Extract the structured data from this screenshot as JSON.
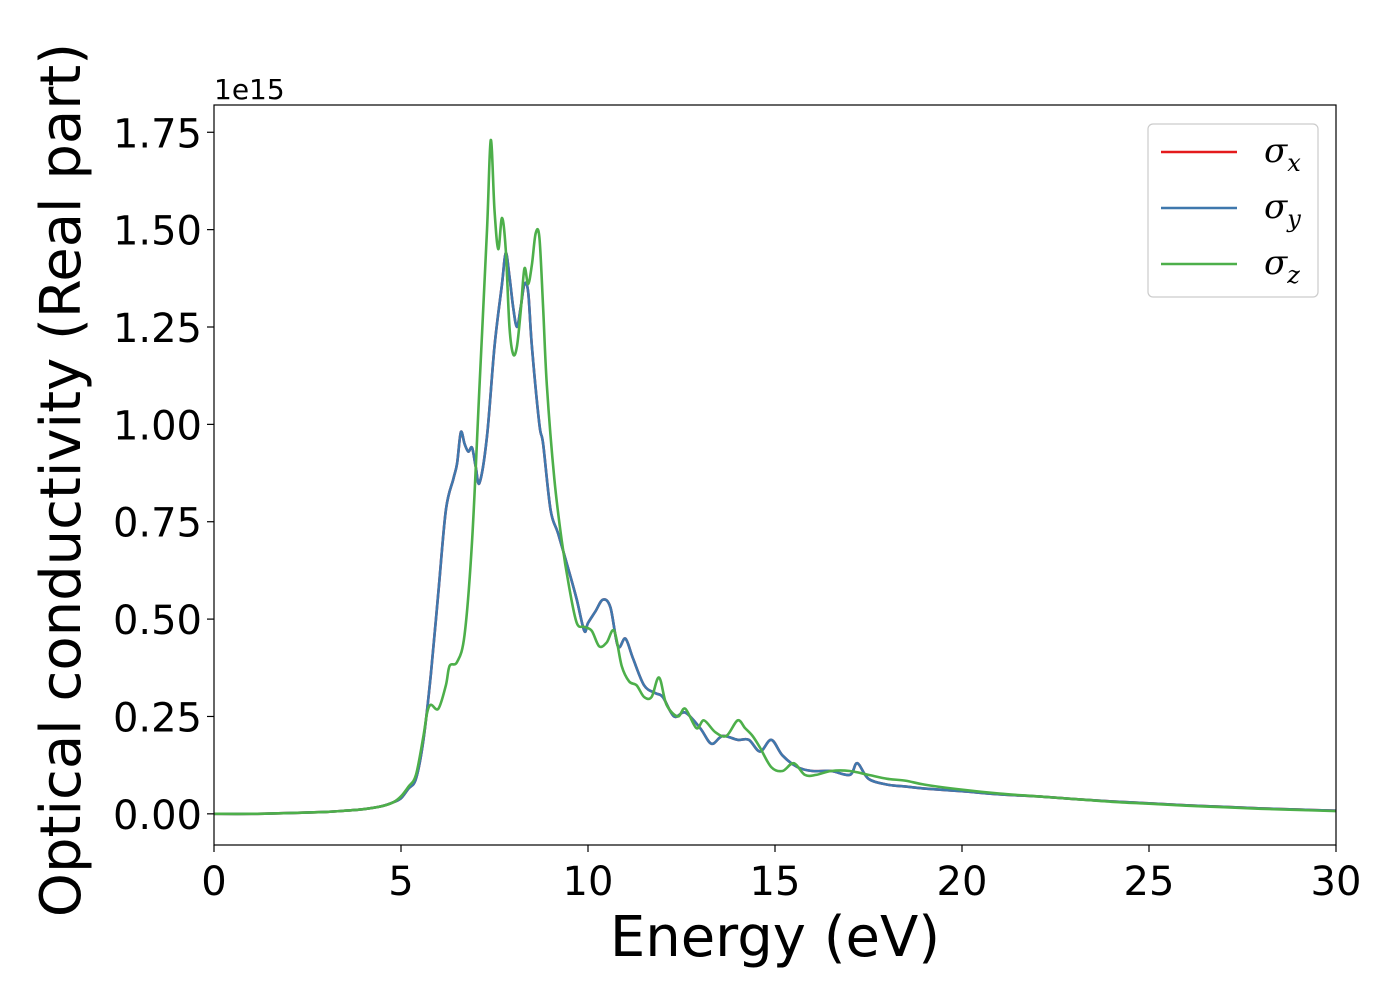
{
  "chart_data": {
    "type": "line",
    "title": "",
    "xlabel": "Energy (eV)",
    "ylabel": "Optical conductivity (Real part)",
    "y_offset_text": "1e15",
    "xlim": [
      0,
      30
    ],
    "ylim": [
      -0.08,
      1.82
    ],
    "y_scale_factor": 1000000000000000.0,
    "grid": false,
    "legend_position": "upper right",
    "x_ticks": [
      0,
      5,
      10,
      15,
      20,
      25,
      30
    ],
    "x_tick_labels": [
      "0",
      "5",
      "10",
      "15",
      "20",
      "25",
      "30"
    ],
    "y_ticks": [
      0.0,
      0.25,
      0.5,
      0.75,
      1.0,
      1.25,
      1.5,
      1.75
    ],
    "y_tick_labels": [
      "0.00",
      "0.25",
      "0.50",
      "0.75",
      "1.00",
      "1.25",
      "1.50",
      "1.75"
    ],
    "series": [
      {
        "name": "σx",
        "symbol": "σ",
        "subscript": "x",
        "color": "#e41a1c",
        "x": [
          0,
          1,
          2,
          3,
          3.5,
          4,
          4.5,
          4.8,
          5,
          5.2,
          5.4,
          5.6,
          5.8,
          6.0,
          6.2,
          6.4,
          6.5,
          6.6,
          6.7,
          6.8,
          6.9,
          7.0,
          7.1,
          7.3,
          7.5,
          7.7,
          7.8,
          7.9,
          8.0,
          8.1,
          8.2,
          8.3,
          8.4,
          8.5,
          8.7,
          8.8,
          9.0,
          9.2,
          9.5,
          9.7,
          9.9,
          10.0,
          10.2,
          10.4,
          10.6,
          10.8,
          11.0,
          11.2,
          11.5,
          11.8,
          12.0,
          12.3,
          12.6,
          13.0,
          13.3,
          13.6,
          14.0,
          14.3,
          14.6,
          14.9,
          15.2,
          15.6,
          16.0,
          16.5,
          17.0,
          17.2,
          17.5,
          18.0,
          18.5,
          19,
          20,
          21,
          22,
          23,
          24,
          25,
          26,
          27,
          28,
          29,
          30
        ],
        "values": [
          0.0,
          0.0,
          0.002,
          0.005,
          0.008,
          0.012,
          0.02,
          0.03,
          0.04,
          0.065,
          0.09,
          0.19,
          0.36,
          0.57,
          0.78,
          0.86,
          0.9,
          0.98,
          0.95,
          0.93,
          0.94,
          0.89,
          0.85,
          0.97,
          1.2,
          1.36,
          1.44,
          1.38,
          1.3,
          1.25,
          1.3,
          1.36,
          1.34,
          1.2,
          1.0,
          0.95,
          0.78,
          0.72,
          0.62,
          0.55,
          0.47,
          0.49,
          0.52,
          0.55,
          0.53,
          0.43,
          0.45,
          0.4,
          0.33,
          0.31,
          0.3,
          0.25,
          0.26,
          0.22,
          0.18,
          0.2,
          0.19,
          0.19,
          0.16,
          0.19,
          0.15,
          0.12,
          0.11,
          0.11,
          0.1,
          0.13,
          0.09,
          0.075,
          0.07,
          0.065,
          0.058,
          0.05,
          0.045,
          0.038,
          0.032,
          0.027,
          0.022,
          0.018,
          0.014,
          0.011,
          0.008
        ]
      },
      {
        "name": "σy",
        "symbol": "σ",
        "subscript": "y",
        "color": "#3f78ad",
        "x": [
          0,
          1,
          2,
          3,
          3.5,
          4,
          4.5,
          4.8,
          5,
          5.2,
          5.4,
          5.6,
          5.8,
          6.0,
          6.2,
          6.4,
          6.5,
          6.6,
          6.7,
          6.8,
          6.9,
          7.0,
          7.1,
          7.3,
          7.5,
          7.7,
          7.8,
          7.9,
          8.0,
          8.1,
          8.2,
          8.3,
          8.4,
          8.5,
          8.7,
          8.8,
          9.0,
          9.2,
          9.5,
          9.7,
          9.9,
          10.0,
          10.2,
          10.4,
          10.6,
          10.8,
          11.0,
          11.2,
          11.5,
          11.8,
          12.0,
          12.3,
          12.6,
          13.0,
          13.3,
          13.6,
          14.0,
          14.3,
          14.6,
          14.9,
          15.2,
          15.6,
          16.0,
          16.5,
          17.0,
          17.2,
          17.5,
          18.0,
          18.5,
          19,
          20,
          21,
          22,
          23,
          24,
          25,
          26,
          27,
          28,
          29,
          30
        ],
        "values": [
          0.0,
          0.0,
          0.002,
          0.005,
          0.008,
          0.012,
          0.02,
          0.03,
          0.04,
          0.065,
          0.09,
          0.19,
          0.36,
          0.57,
          0.78,
          0.86,
          0.9,
          0.98,
          0.95,
          0.93,
          0.94,
          0.89,
          0.85,
          0.97,
          1.2,
          1.36,
          1.44,
          1.38,
          1.3,
          1.25,
          1.3,
          1.36,
          1.34,
          1.2,
          1.0,
          0.95,
          0.78,
          0.72,
          0.62,
          0.55,
          0.47,
          0.49,
          0.52,
          0.55,
          0.53,
          0.43,
          0.45,
          0.4,
          0.33,
          0.31,
          0.3,
          0.25,
          0.26,
          0.22,
          0.18,
          0.2,
          0.19,
          0.19,
          0.16,
          0.19,
          0.15,
          0.12,
          0.11,
          0.11,
          0.1,
          0.13,
          0.09,
          0.075,
          0.07,
          0.065,
          0.058,
          0.05,
          0.045,
          0.038,
          0.032,
          0.027,
          0.022,
          0.018,
          0.014,
          0.011,
          0.008
        ]
      },
      {
        "name": "σz",
        "symbol": "σ",
        "subscript": "z",
        "color": "#4daf4a",
        "x": [
          0,
          1,
          2,
          3,
          3.5,
          4,
          4.5,
          4.8,
          5,
          5.2,
          5.4,
          5.6,
          5.7,
          5.8,
          6.0,
          6.2,
          6.3,
          6.5,
          6.7,
          6.9,
          7.1,
          7.3,
          7.4,
          7.5,
          7.6,
          7.7,
          7.8,
          7.9,
          8.0,
          8.1,
          8.2,
          8.3,
          8.4,
          8.5,
          8.6,
          8.7,
          8.8,
          8.9,
          9.1,
          9.3,
          9.5,
          9.7,
          9.9,
          10.1,
          10.3,
          10.5,
          10.7,
          10.9,
          11.1,
          11.3,
          11.5,
          11.7,
          11.9,
          12.1,
          12.4,
          12.6,
          12.9,
          13.1,
          13.4,
          13.7,
          14.0,
          14.2,
          14.4,
          14.6,
          14.9,
          15.2,
          15.5,
          15.8,
          16.1,
          16.5,
          17.0,
          17.5,
          18.0,
          18.5,
          19,
          20,
          21,
          22,
          23,
          24,
          25,
          26,
          27,
          28,
          29,
          30
        ],
        "values": [
          0.0,
          0.0,
          0.002,
          0.005,
          0.008,
          0.012,
          0.02,
          0.03,
          0.045,
          0.07,
          0.1,
          0.2,
          0.26,
          0.28,
          0.27,
          0.33,
          0.38,
          0.39,
          0.46,
          0.7,
          1.1,
          1.5,
          1.73,
          1.55,
          1.45,
          1.53,
          1.45,
          1.25,
          1.18,
          1.2,
          1.29,
          1.4,
          1.36,
          1.41,
          1.49,
          1.48,
          1.3,
          1.1,
          0.86,
          0.7,
          0.58,
          0.49,
          0.48,
          0.47,
          0.43,
          0.44,
          0.47,
          0.38,
          0.34,
          0.33,
          0.3,
          0.3,
          0.35,
          0.28,
          0.25,
          0.27,
          0.22,
          0.24,
          0.21,
          0.2,
          0.24,
          0.22,
          0.2,
          0.17,
          0.12,
          0.11,
          0.13,
          0.1,
          0.1,
          0.11,
          0.11,
          0.1,
          0.09,
          0.085,
          0.075,
          0.062,
          0.052,
          0.045,
          0.038,
          0.031,
          0.026,
          0.021,
          0.017,
          0.013,
          0.01,
          0.007
        ]
      }
    ]
  }
}
